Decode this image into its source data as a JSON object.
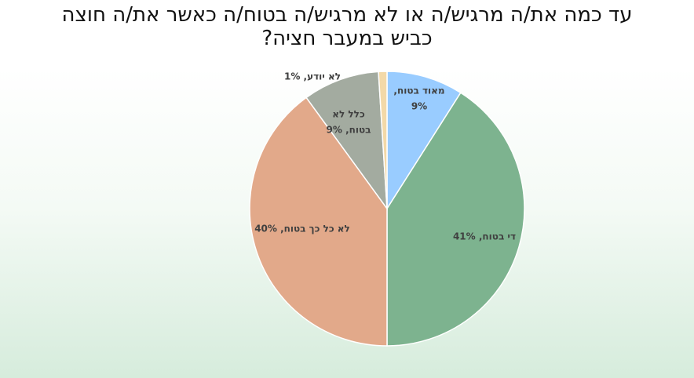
{
  "chart_data": {
    "type": "pie",
    "title_lines": [
      "עד כמה את/ה מרגיש/ה או לא מרגיש/ה בטוח/ה כאשר את/ה חוצה",
      "כביש במעבר חציה?"
    ],
    "slices": [
      {
        "label": "מאוד בטוח",
        "value": 9,
        "color": "#99CCFF",
        "label_lines": [
          "מאוד בטוח,",
          "9%"
        ]
      },
      {
        "label": "די בטוח",
        "value": 41,
        "color": "#7DB38F",
        "label_lines": [
          "די בטוח, 41%"
        ]
      },
      {
        "label": "לא כל כך בטוח",
        "value": 40,
        "color": "#E2A98A",
        "label_lines": [
          "לא כל כך בטוח, 40%"
        ]
      },
      {
        "label": "כלל לא בטוח",
        "value": 9,
        "color": "#A3ABA0",
        "label_lines": [
          "כלל לא",
          "בטוח, 9%"
        ]
      },
      {
        "label": "לא יודע",
        "value": 1,
        "color": "#F3D9A8",
        "label_lines": [
          "לא יודע, 1%"
        ]
      }
    ]
  }
}
